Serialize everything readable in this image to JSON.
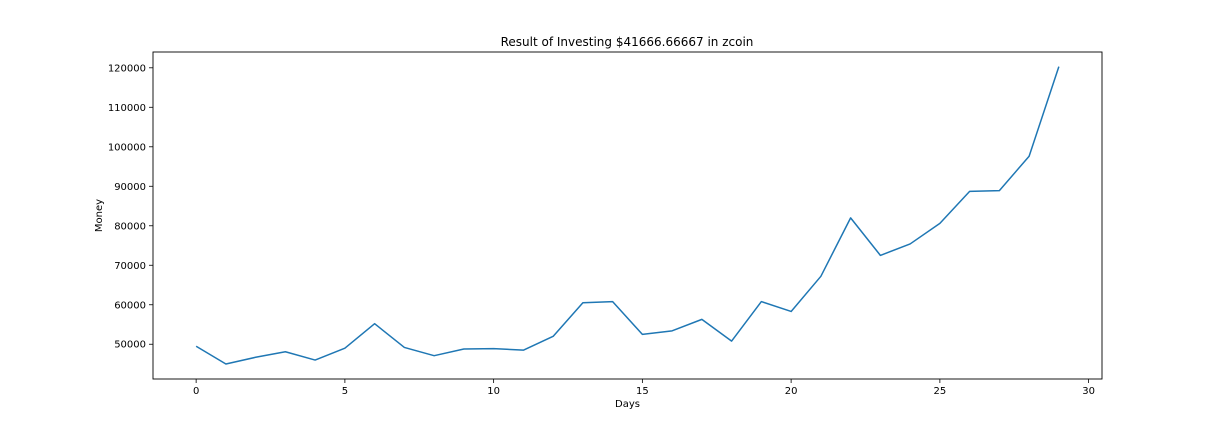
{
  "chart_data": {
    "type": "line",
    "title": "Result of Investing $41666.66667 in zcoin",
    "xlabel": "Days",
    "ylabel": "Money",
    "xlim": [
      -1.45,
      30.45
    ],
    "ylim": [
      41200,
      124000
    ],
    "xticks": [
      0,
      5,
      10,
      15,
      20,
      25,
      30
    ],
    "yticks": [
      50000,
      60000,
      70000,
      80000,
      90000,
      100000,
      110000,
      120000
    ],
    "grid": false,
    "series": [
      {
        "color": "#1f77b4",
        "x": [
          0,
          1,
          2,
          3,
          4,
          5,
          6,
          7,
          8,
          9,
          10,
          11,
          12,
          13,
          14,
          15,
          16,
          17,
          18,
          19,
          20,
          21,
          22,
          23,
          24,
          25,
          26,
          27,
          28,
          29
        ],
        "values": [
          49500,
          45000,
          46700,
          48100,
          46000,
          49000,
          55200,
          49200,
          47100,
          48800,
          48900,
          48500,
          52000,
          60500,
          60800,
          52500,
          53400,
          56300,
          50800,
          60800,
          58300,
          67200,
          82000,
          72500,
          75400,
          80600,
          88700,
          88900,
          97600,
          120300
        ]
      }
    ]
  }
}
